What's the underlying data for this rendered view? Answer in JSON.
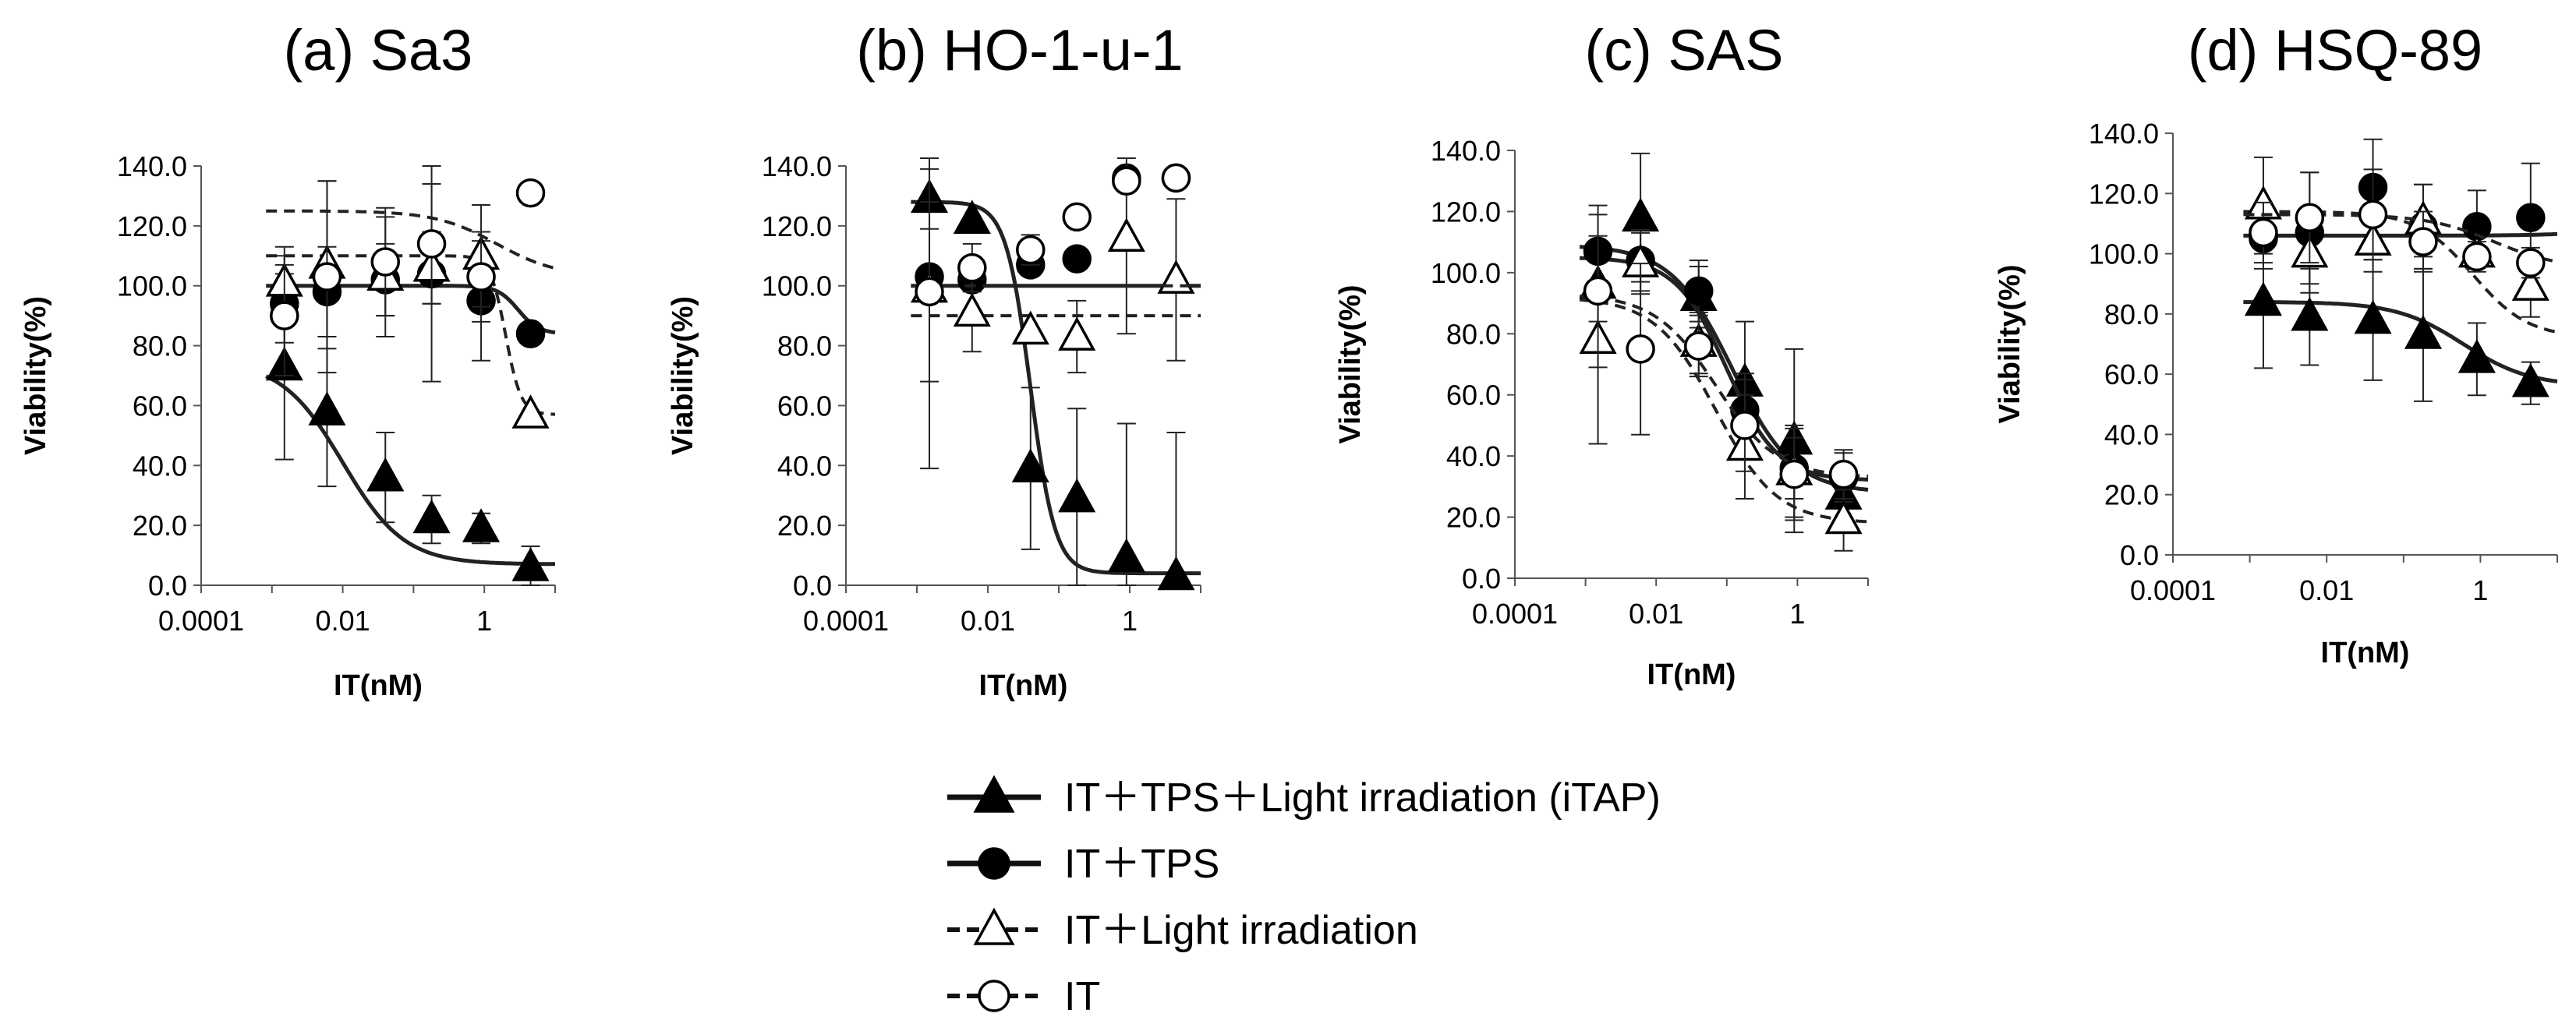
{
  "chart_data": [
    {
      "type": "scatter",
      "title": "(a) Sa3",
      "xlabel": "IT(nM)",
      "ylabel": "Viability(%)",
      "xscale": "log",
      "xlim": [
        0.0001,
        10
      ],
      "ylim": [
        0,
        140
      ],
      "x_ticks": [
        "0.0001",
        "0.01",
        "1"
      ],
      "y_ticks": [
        "0.0",
        "20.0",
        "40.0",
        "60.0",
        "80.0",
        "100.0",
        "120.0",
        "140.0"
      ],
      "x": [
        0.0015,
        0.006,
        0.04,
        0.18,
        0.9,
        4.5
      ],
      "series": [
        {
          "name": "IT + TPS + Light irradiation (iTAP)",
          "values": [
            73,
            58,
            36,
            22,
            19,
            6
          ],
          "errors": [
            31,
            25,
            15,
            8,
            5,
            7
          ],
          "fit": [
            0,
            75,
            0.01,
            1.0,
            7
          ]
        },
        {
          "name": "IT + TPS",
          "values": [
            94,
            98,
            102,
            104,
            95,
            84
          ],
          "errors": [
            13,
            15,
            12,
            36,
            20,
            0
          ],
          "fit": [
            84,
            100,
            3,
            3,
            84
          ]
        },
        {
          "name": "IT + Light irradiation",
          "values": [
            101,
            107,
            103,
            106,
            110,
            57
          ],
          "errors": [
            12,
            28,
            20,
            12,
            17,
            0
          ],
          "fit": [
            57,
            110,
            2,
            4,
            57
          ]
        },
        {
          "name": "IT",
          "values": [
            90,
            103,
            108,
            114,
            103,
            131
          ],
          "errors": [
            20,
            32,
            18,
            20,
            15,
            0
          ],
          "fit": [
            103,
            125,
            1.5,
            1,
            103
          ]
        }
      ]
    },
    {
      "type": "scatter",
      "title": "(b) HO-1-u-1",
      "xlabel": "IT(nM)",
      "ylabel": "Viability(%)",
      "xscale": "log",
      "xlim": [
        0.0001,
        10
      ],
      "ylim": [
        0,
        140
      ],
      "x_ticks": [
        "0.0001",
        "0.01",
        "1"
      ],
      "y_ticks": [
        "0.0",
        "20.0",
        "40.0",
        "60.0",
        "80.0",
        "100.0",
        "120.0",
        "140.0"
      ],
      "x": [
        0.0015,
        0.006,
        0.04,
        0.18,
        0.9,
        4.5
      ],
      "series": [
        {
          "name": "IT + TPS + Light irradiation (iTAP)",
          "values": [
            129,
            122,
            39,
            29,
            9,
            3
          ],
          "errors": [
            10,
            0,
            27,
            30,
            45,
            48
          ],
          "fit": [
            0,
            128,
            0.04,
            2.5,
            4
          ]
        },
        {
          "name": "IT + TPS",
          "values": [
            103,
            102,
            107,
            109,
            136,
            136
          ],
          "errors": [
            0,
            0,
            0,
            0,
            0,
            0
          ],
          "fit": [
            0,
            100,
            0.15,
            2.5,
            100
          ]
        },
        {
          "name": "IT + Light irradiation",
          "values": [
            99,
            91,
            85,
            83,
            116,
            102
          ],
          "errors": [
            60,
            13,
            0,
            12,
            32,
            27
          ],
          "fit": [
            0,
            90,
            0.1,
            1.0,
            90
          ]
        },
        {
          "name": "IT",
          "values": [
            98,
            106,
            112,
            123,
            135,
            136
          ],
          "errors": [
            30,
            8,
            5,
            0,
            0,
            0
          ],
          "fit": [
            0,
            100,
            0.1,
            2.0,
            100
          ]
        }
      ]
    },
    {
      "type": "scatter",
      "title": "(c) SAS",
      "xlabel": "IT(nM)",
      "ylabel": "Viability(%)",
      "xscale": "log",
      "xlim": [
        0.0001,
        10
      ],
      "ylim": [
        0,
        140
      ],
      "x_ticks": [
        "0.0001",
        "0.01",
        "1"
      ],
      "y_ticks": [
        "0.0",
        "20.0",
        "40.0",
        "60.0",
        "80.0",
        "100.0",
        "120.0",
        "140.0"
      ],
      "x": [
        0.0015,
        0.006,
        0.04,
        0.18,
        0.9,
        4.5
      ],
      "series": [
        {
          "name": "IT + TPS + Light irradiation (iTAP)",
          "values": [
            96,
            118,
            92,
            64,
            45,
            27
          ],
          "errors": [
            12,
            21,
            10,
            20,
            30,
            10
          ],
          "fit": [
            0,
            109,
            0.12,
            1.0,
            28
          ]
        },
        {
          "name": "IT + TPS",
          "values": [
            107,
            104,
            94,
            55,
            36,
            33
          ],
          "errors": [
            15,
            10,
            10,
            12,
            10,
            8
          ],
          "fit": [
            0,
            105,
            0.1,
            1.2,
            32
          ]
        },
        {
          "name": "IT + Light irradiation",
          "values": [
            78,
            103,
            77,
            43,
            35,
            19
          ],
          "errors": [
            34,
            10,
            10,
            17,
            15,
            10
          ],
          "fit": [
            0,
            92,
            0.07,
            1.0,
            18
          ]
        },
        {
          "name": "IT",
          "values": [
            94,
            75,
            76,
            50,
            34,
            34
          ],
          "errors": [
            25,
            28,
            10,
            15,
            15,
            8
          ],
          "fit": [
            0,
            93,
            0.07,
            1.0,
            33
          ]
        }
      ]
    },
    {
      "type": "scatter",
      "title": "(d) HSQ-89",
      "xlabel": "IT(nM)",
      "ylabel": "Viability(%)",
      "xscale": "log",
      "xlim": [
        0.0001,
        10
      ],
      "ylim": [
        0,
        140
      ],
      "x_ticks": [
        "0.0001",
        "0.01",
        "1"
      ],
      "y_ticks": [
        "0.0",
        "20.0",
        "40.0",
        "60.0",
        "80.0",
        "100.0",
        "120.0",
        "140.0"
      ],
      "x": [
        0.0015,
        0.006,
        0.04,
        0.18,
        0.9,
        4.5
      ],
      "series": [
        {
          "name": "IT + TPS + Light irradiation (iTAP)",
          "values": [
            84,
            79,
            78,
            73,
            65,
            57
          ],
          "errors": [
            22,
            16,
            20,
            22,
            12,
            7
          ],
          "fit": [
            0,
            84,
            0.6,
            1.0,
            56
          ]
        },
        {
          "name": "IT + TPS",
          "values": [
            105,
            107,
            122,
            109,
            109,
            112
          ],
          "errors": [
            10,
            20,
            16,
            14,
            12,
            18
          ],
          "fit": [
            0,
            106,
            100,
            1,
            112
          ]
        },
        {
          "name": "IT + Light irradiation",
          "values": [
            116,
            100,
            104,
            111,
            100,
            89
          ],
          "errors": [
            16,
            10,
            10,
            12,
            0,
            10
          ],
          "fit": [
            0,
            114,
            0.8,
            1.2,
            72
          ]
        },
        {
          "name": "IT",
          "values": [
            107,
            112,
            113,
            104,
            99,
            97
          ],
          "errors": [
            10,
            15,
            15,
            10,
            5,
            5
          ],
          "fit": [
            0,
            113,
            1.5,
            1.0,
            95
          ]
        }
      ]
    }
  ],
  "legend": [
    {
      "label": "IT＋TPS＋Light irradiation (iTAP)",
      "marker": "triangle-filled",
      "line": "solid"
    },
    {
      "label": "IT＋TPS",
      "marker": "circle-filled",
      "line": "solid"
    },
    {
      "label": "IT＋Light irradiation",
      "marker": "triangle-open",
      "line": "dashed"
    },
    {
      "label": "IT",
      "marker": "circle-open",
      "line": "dashed"
    }
  ]
}
